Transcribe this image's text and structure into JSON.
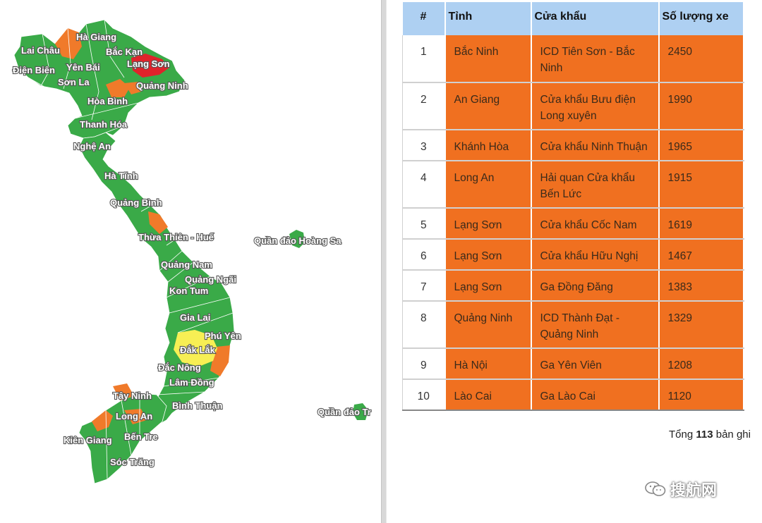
{
  "map": {
    "colors": {
      "green": "#3aaa48",
      "orange": "#f07a2a",
      "red": "#e0232b",
      "yellow": "#f7ef54"
    },
    "labels": [
      {
        "id": "ha-giang",
        "text": "Hà Giang"
      },
      {
        "id": "lai-chau",
        "text": "Lai Châu"
      },
      {
        "id": "bac-kan",
        "text": "Bắc Kạn"
      },
      {
        "id": "yen-bai",
        "text": "Yên Bái"
      },
      {
        "id": "lang-son",
        "text": "Lạng Sơn"
      },
      {
        "id": "dien-bien",
        "text": "Điện Biên"
      },
      {
        "id": "son-la",
        "text": "Sơn La"
      },
      {
        "id": "quang-ninh",
        "text": "Quảng Ninh"
      },
      {
        "id": "hoa-binh",
        "text": "Hòa Bình"
      },
      {
        "id": "thanh-hoa",
        "text": "Thanh Hóa"
      },
      {
        "id": "nghe-an",
        "text": "Nghệ An"
      },
      {
        "id": "ha-tinh",
        "text": "Hà Tĩnh"
      },
      {
        "id": "quang-binh",
        "text": "Quảng Bình"
      },
      {
        "id": "thua-thien-hue",
        "text": "Thừa Thiên - Huế"
      },
      {
        "id": "hoang-sa",
        "text": "Quần đảo Hoàng Sa"
      },
      {
        "id": "quang-nam",
        "text": "Quảng Nam"
      },
      {
        "id": "quang-ngai",
        "text": "Quảng Ngãi"
      },
      {
        "id": "kon-tum",
        "text": "Kon Tum"
      },
      {
        "id": "gia-lai",
        "text": "Gia Lai"
      },
      {
        "id": "phu-yen",
        "text": "Phú Yên"
      },
      {
        "id": "dak-lak",
        "text": "Đắk Lắk"
      },
      {
        "id": "dak-nong",
        "text": "Đắc Nông"
      },
      {
        "id": "lam-dong",
        "text": "Lâm Đồng"
      },
      {
        "id": "tay-ninh",
        "text": "Tây Ninh"
      },
      {
        "id": "binh-thuan",
        "text": "Bình Thuận"
      },
      {
        "id": "long-an",
        "text": "Long An"
      },
      {
        "id": "truong-sa",
        "text": "Quần đảo Tr"
      },
      {
        "id": "kien-giang",
        "text": "Kiên Giang"
      },
      {
        "id": "ben-tre",
        "text": "Bến Tre"
      },
      {
        "id": "soc-trang",
        "text": "Sóc Trăng"
      }
    ]
  },
  "table": {
    "headers": {
      "num": "#",
      "province": "Tỉnh",
      "gate": "Cửa khẩu",
      "vehicles": "Số lượng xe"
    },
    "highlight_color": "#f07020",
    "header_color": "#aed0f2",
    "rows": [
      {
        "num": "1",
        "province": "Bắc Ninh",
        "gate_lines": [
          "ICD Tiên Sơn - Bắc",
          "Ninh"
        ],
        "vehicles": "2450"
      },
      {
        "num": "2",
        "province": "An Giang",
        "gate_lines": [
          "Cửa khẩu Bưu điện",
          "Long xuyên"
        ],
        "vehicles": "1990"
      },
      {
        "num": "3",
        "province": "Khánh Hòa",
        "gate_lines": [
          "Cửa khẩu Ninh Thuận"
        ],
        "vehicles": "1965"
      },
      {
        "num": "4",
        "province": "Long An",
        "gate_lines": [
          "Hải quan Cửa khẩu",
          "Bến Lức"
        ],
        "vehicles": "1915"
      },
      {
        "num": "5",
        "province": "Lạng Sơn",
        "gate_lines": [
          "Cửa khẩu Cốc Nam"
        ],
        "vehicles": "1619"
      },
      {
        "num": "6",
        "province": "Lạng Sơn",
        "gate_lines": [
          "Cửa khẩu Hữu Nghị"
        ],
        "vehicles": "1467"
      },
      {
        "num": "7",
        "province": "Lạng Sơn",
        "gate_lines": [
          "Ga Đồng Đăng"
        ],
        "vehicles": "1383"
      },
      {
        "num": "8",
        "province": "Quảng Ninh",
        "gate_lines": [
          "ICD Thành Đạt -",
          "Quảng Ninh"
        ],
        "vehicles": "1329"
      },
      {
        "num": "9",
        "province": "Hà Nội",
        "gate_lines": [
          "Ga Yên Viên"
        ],
        "vehicles": "1208"
      },
      {
        "num": "10",
        "province": "Lào Cai",
        "gate_lines": [
          "Ga Lào Cai"
        ],
        "vehicles": "1120"
      }
    ]
  },
  "total": {
    "prefix": "Tổng",
    "count": "113",
    "suffix": "bản ghi"
  },
  "watermark": {
    "text": "搜航网",
    "icon": "wechat-icon"
  }
}
